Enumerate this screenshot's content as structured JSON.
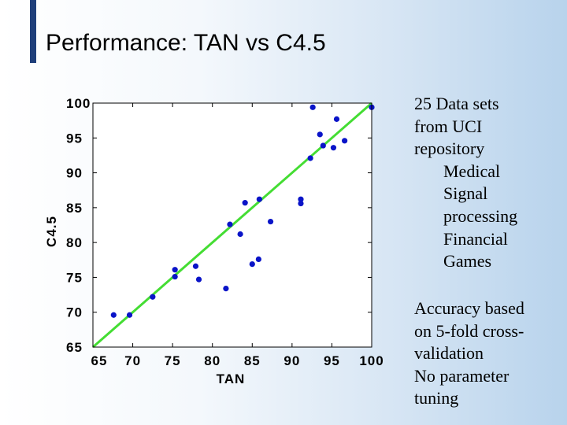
{
  "slide": {
    "title": "Performance: TAN vs C4.5"
  },
  "info_block_1": {
    "lines": [
      "25 Data sets",
      "from UCI",
      "repository"
    ],
    "sub_items": [
      "Medical",
      "Signal",
      "processing",
      "Financial",
      "Games"
    ]
  },
  "info_block_2": {
    "lines": [
      "Accuracy based",
      "on 5-fold cross-",
      "validation",
      "No parameter",
      "tuning"
    ]
  },
  "chart_data": {
    "type": "scatter",
    "xlabel": "TAN",
    "ylabel": "C4.5",
    "title": "",
    "xlim": [
      65,
      100
    ],
    "ylim": [
      65,
      100
    ],
    "x_ticks": [
      "65",
      "70",
      "75",
      "80",
      "85",
      "90",
      "95",
      "100"
    ],
    "y_ticks": [
      "100",
      "95",
      "90",
      "85",
      "80",
      "75",
      "70",
      "65"
    ],
    "grid": false,
    "point_color": "#0a14c8",
    "reference_line": {
      "x": [
        65,
        100
      ],
      "y": [
        65,
        100
      ],
      "color": "#44dd33"
    },
    "points": [
      {
        "x": 67.6,
        "y": 69.6
      },
      {
        "x": 69.6,
        "y": 69.6
      },
      {
        "x": 72.5,
        "y": 72.2
      },
      {
        "x": 75.3,
        "y": 76.1
      },
      {
        "x": 75.3,
        "y": 75.1
      },
      {
        "x": 77.9,
        "y": 76.6
      },
      {
        "x": 78.3,
        "y": 74.7
      },
      {
        "x": 81.7,
        "y": 73.4
      },
      {
        "x": 82.2,
        "y": 82.6
      },
      {
        "x": 83.5,
        "y": 81.2
      },
      {
        "x": 84.1,
        "y": 85.7
      },
      {
        "x": 85.0,
        "y": 76.9
      },
      {
        "x": 85.8,
        "y": 77.6
      },
      {
        "x": 85.9,
        "y": 86.2
      },
      {
        "x": 87.3,
        "y": 83.0
      },
      {
        "x": 91.1,
        "y": 86.2
      },
      {
        "x": 91.1,
        "y": 85.6
      },
      {
        "x": 92.3,
        "y": 92.1
      },
      {
        "x": 92.6,
        "y": 99.4
      },
      {
        "x": 93.5,
        "y": 95.5
      },
      {
        "x": 93.9,
        "y": 93.9
      },
      {
        "x": 95.2,
        "y": 93.6
      },
      {
        "x": 95.6,
        "y": 97.7
      },
      {
        "x": 96.6,
        "y": 94.6
      },
      {
        "x": 100.0,
        "y": 99.4
      }
    ]
  }
}
